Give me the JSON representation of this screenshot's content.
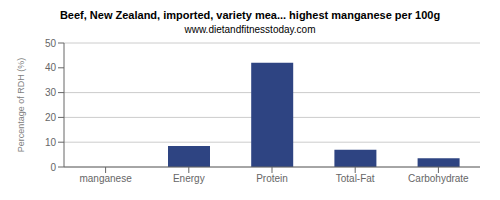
{
  "chart_data": {
    "type": "bar",
    "title": "Beef, New Zealand, imported, variety mea... highest manganese per 100g",
    "subtitle": "www.dietandfitnesstoday.com",
    "categories": [
      "manganese",
      "Energy",
      "Protein",
      "Total-Fat",
      "Carbohydrate"
    ],
    "values": [
      0,
      8.5,
      42,
      7,
      3.5
    ],
    "color": "#2e4482",
    "ylabel": "Percentage of RDH (%)",
    "ylim": [
      0,
      50
    ],
    "yticks": [
      0,
      10,
      20,
      30,
      40,
      50
    ],
    "grid": true
  }
}
